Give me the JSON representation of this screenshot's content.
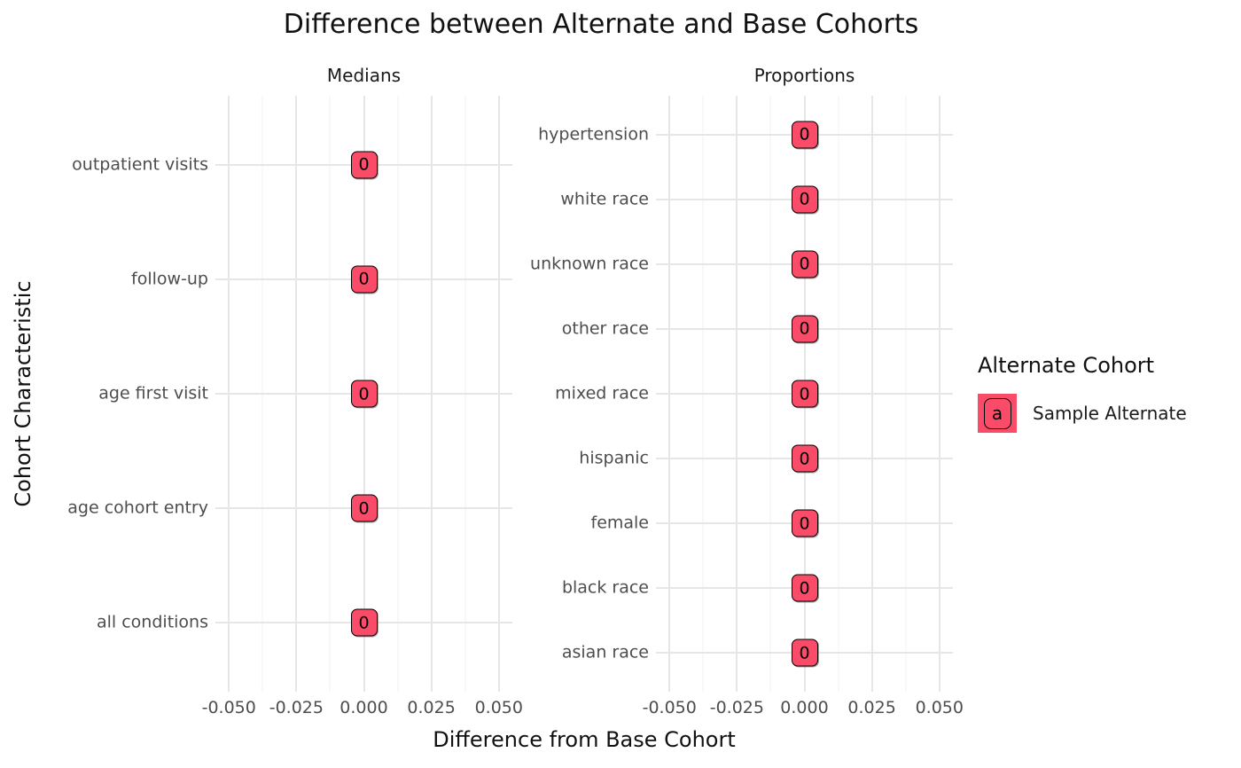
{
  "title": "Difference between Alternate and Base Cohorts",
  "axes": {
    "x_label": "Difference from Base Cohort",
    "y_label": "Cohort Characteristic"
  },
  "legend": {
    "title": "Alternate Cohort",
    "key_glyph": "a",
    "items": [
      {
        "label": "Sample Alternate",
        "color": "#FA4C68"
      }
    ]
  },
  "colors": {
    "point_fill": "#FA4C68",
    "point_border": "#000000",
    "grid_major": "#E6E6E6",
    "grid_minor": "#F1F1F1",
    "axis_text": "#4D4D4D",
    "title_text": "#111111"
  },
  "chart_data": {
    "type": "scatter",
    "title": "Difference between Alternate and Base Cohorts",
    "xlabel": "Difference from Base Cohort",
    "ylabel": "Cohort Characteristic",
    "xlim": [
      -0.055,
      0.055
    ],
    "x_ticks": [
      -0.05,
      -0.025,
      0,
      0.025,
      0.05
    ],
    "x_tick_labels": [
      "-0.050",
      "-0.025",
      "0.000",
      "0.025",
      "0.050"
    ],
    "grid": true,
    "legend_position": "right",
    "series": [
      {
        "name": "Sample Alternate",
        "color": "#FA4C68"
      }
    ],
    "facets": [
      {
        "label": "Medians",
        "categories": [
          "outpatient visits",
          "follow-up",
          "age first visit",
          "age cohort entry",
          "all conditions"
        ],
        "values": [
          0,
          0,
          0,
          0,
          0
        ],
        "point_labels": [
          "0",
          "0",
          "0",
          "0",
          "0"
        ]
      },
      {
        "label": "Proportions",
        "categories": [
          "hypertension",
          "white race",
          "unknown race",
          "other race",
          "mixed race",
          "hispanic",
          "female",
          "black race",
          "asian race"
        ],
        "values": [
          0,
          0,
          0,
          0,
          0,
          0,
          0,
          0,
          0
        ],
        "point_labels": [
          "0",
          "0",
          "0",
          "0",
          "0",
          "0",
          "0",
          "0",
          "0"
        ]
      }
    ]
  }
}
